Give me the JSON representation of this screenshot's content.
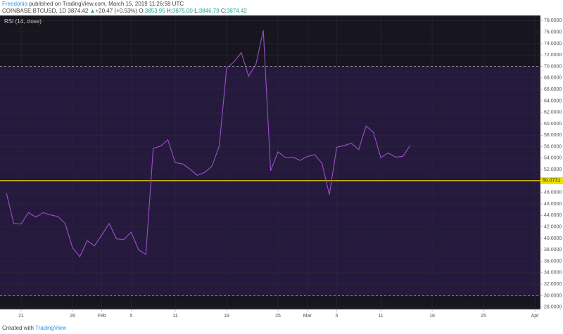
{
  "header": {
    "author": "Freedonia",
    "published": "published on TradingView.com, March 15, 2019 11:26:58 UTC",
    "symbol": "COINBASE:BTCUSD, 1D",
    "last": "3874.42",
    "arrow": "▲",
    "change": "+20.47 (+0.53%)",
    "open_label": "O:",
    "open": "3853.95",
    "high_label": "H:",
    "high": "3875.00",
    "low_label": "L:",
    "low": "3846.79",
    "close_label": "C:",
    "close": "3874.42"
  },
  "footer": {
    "created": "Created with",
    "brand": "TradingView"
  },
  "chart_data": {
    "type": "line",
    "categories": [
      null,
      null,
      "21",
      null,
      null,
      null,
      null,
      null,
      null,
      "28",
      null,
      null,
      null,
      "Feb",
      null,
      null,
      null,
      "5",
      null,
      null,
      null,
      null,
      null,
      "11",
      null,
      null,
      null,
      null,
      null,
      null,
      "18",
      null,
      null,
      null,
      null,
      null,
      null,
      "25",
      null,
      null,
      null,
      "Mar",
      null,
      null,
      null,
      "5",
      null,
      null,
      null,
      null,
      null,
      "11",
      null,
      null,
      null,
      null,
      null,
      null,
      "18",
      null,
      null,
      null,
      null,
      null,
      null,
      "25",
      null,
      null,
      null,
      null,
      null,
      null,
      "Apr"
    ],
    "series": [
      {
        "name": "RSI (14, close)",
        "color": "#9b4fc9",
        "values": [
          47.9,
          42.6,
          42.5,
          44.5,
          43.7,
          44.5,
          44.1,
          43.8,
          42.6,
          38.4,
          36.8,
          39.6,
          38.7,
          40.6,
          42.6,
          39.9,
          39.8,
          41.1,
          38.0,
          37.2,
          55.7,
          56.1,
          57.2,
          53.2,
          53.0,
          52.1,
          51.0,
          51.5,
          52.6,
          56.1,
          69.7,
          70.8,
          72.4,
          68.3,
          70.4,
          76.3,
          51.8,
          55.1,
          54.1,
          54.2,
          53.6,
          54.3,
          54.6,
          53.1,
          47.6,
          55.9,
          56.2,
          56.6,
          55.5,
          59.6,
          58.5,
          54.1,
          54.9,
          54.2,
          54.3,
          56.2,
          null,
          null,
          null,
          null,
          null,
          null,
          null,
          null,
          null,
          null,
          null,
          null,
          null,
          null,
          null,
          null,
          null
        ]
      }
    ],
    "ylim": [
      27.6,
      78.9
    ],
    "yticks": [
      {
        "value": 28,
        "label": "28.0000"
      },
      {
        "value": 30,
        "label": "30.0000"
      },
      {
        "value": 32,
        "label": "32.0000"
      },
      {
        "value": 34,
        "label": "34.0000"
      },
      {
        "value": 36,
        "label": "36.0000"
      },
      {
        "value": 38,
        "label": "38.0000"
      },
      {
        "value": 40,
        "label": "40.0000"
      },
      {
        "value": 42,
        "label": "42.0000"
      },
      {
        "value": 44,
        "label": "44.0000"
      },
      {
        "value": 46,
        "label": "46.0000"
      },
      {
        "value": 48,
        "label": "48.0000"
      },
      {
        "value": 50,
        "label": "50.0000"
      },
      {
        "value": 52,
        "label": "52.0000"
      },
      {
        "value": 54,
        "label": "54.0000"
      },
      {
        "value": 56,
        "label": "56.0000"
      },
      {
        "value": 58,
        "label": "58.0000"
      },
      {
        "value": 60,
        "label": "60.0000"
      },
      {
        "value": 62,
        "label": "62.0000"
      },
      {
        "value": 64,
        "label": "64.0000"
      },
      {
        "value": 66,
        "label": "66.0000"
      },
      {
        "value": 68,
        "label": "68.0000"
      },
      {
        "value": 70,
        "label": "70.0000"
      },
      {
        "value": 72,
        "label": "72.0000"
      },
      {
        "value": 74,
        "label": "74.0000"
      },
      {
        "value": 76,
        "label": "76.0000"
      },
      {
        "value": 78,
        "label": "78.0000"
      }
    ],
    "band": [
      30,
      70
    ],
    "hline": 50.0731,
    "hline_color": "#f0e000",
    "grid": true
  }
}
